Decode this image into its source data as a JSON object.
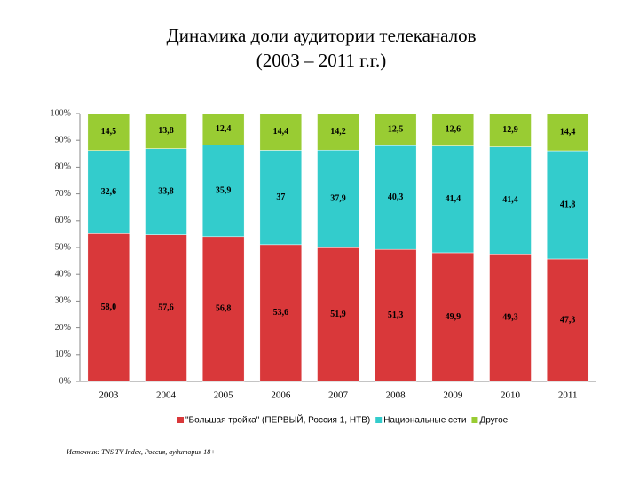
{
  "chart_data": {
    "type": "bar_percent_stacked",
    "title": "Динамика доли аудитории телеканалов",
    "subtitle": "(2003 – 2011 г.г.)",
    "categories": [
      "2003",
      "2004",
      "2005",
      "2006",
      "2007",
      "2008",
      "2009",
      "2010",
      "2011"
    ],
    "series": [
      {
        "name": "\"Большая тройка\" (ПЕРВЫЙ, Россия 1, НТВ)",
        "color": "#d9383a",
        "values": [
          58.0,
          57.6,
          56.8,
          53.6,
          51.9,
          51.3,
          49.9,
          49.3,
          47.3
        ],
        "value_labels": [
          "58,0",
          "57,6",
          "56,8",
          "53,6",
          "51,9",
          "51,3",
          "49,9",
          "49,3",
          "47,3"
        ]
      },
      {
        "name": "Национальные сети",
        "color": "#33cccc",
        "values": [
          32.6,
          33.8,
          35.9,
          37,
          37.9,
          40.3,
          41.4,
          41.4,
          41.8
        ],
        "value_labels": [
          "32,6",
          "33,8",
          "35,9",
          "37",
          "37,9",
          "40,3",
          "41,4",
          "41,4",
          "41,8"
        ]
      },
      {
        "name": "Другое",
        "color": "#99cc33",
        "values": [
          14.5,
          13.8,
          12.4,
          14.4,
          14.2,
          12.5,
          12.6,
          12.9,
          14.4
        ],
        "value_labels": [
          "14,5",
          "13,8",
          "12,4",
          "14,4",
          "14,2",
          "12,5",
          "12,6",
          "12,9",
          "14,4"
        ]
      }
    ],
    "ylim": [
      0,
      100
    ],
    "yticks": [
      {
        "value": 0,
        "label": "0%"
      },
      {
        "value": 10,
        "label": "10%"
      },
      {
        "value": 20,
        "label": "20%"
      },
      {
        "value": 30,
        "label": "30%"
      },
      {
        "value": 40,
        "label": "40%"
      },
      {
        "value": 50,
        "label": "50%"
      },
      {
        "value": 60,
        "label": "60%"
      },
      {
        "value": 70,
        "label": "70%"
      },
      {
        "value": 80,
        "label": "80%"
      },
      {
        "value": 90,
        "label": "90%"
      },
      {
        "value": 100,
        "label": "100%"
      }
    ],
    "legend": "bottom",
    "source": "Источник: TNS TV Index, Россия, аудитория 18+"
  }
}
